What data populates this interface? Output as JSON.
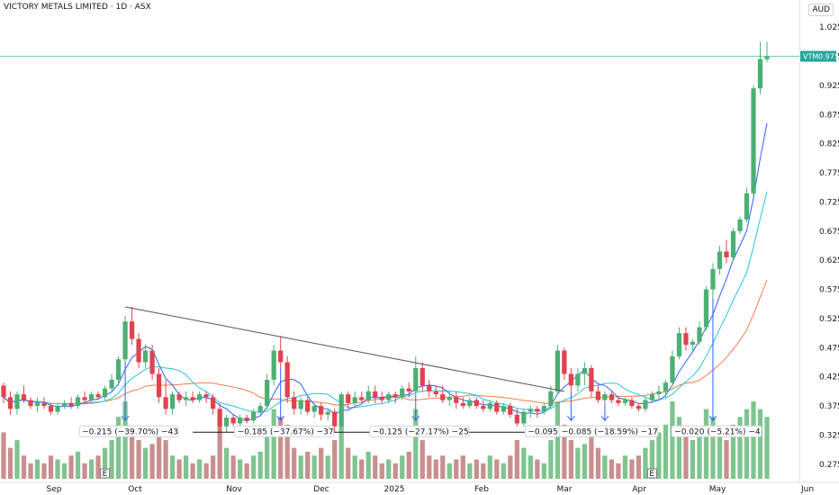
{
  "header": {
    "title": "VICTORY METALS LIMITED · 1D · ASX",
    "currency": "AUD"
  },
  "last_price": {
    "ticker": "VTM",
    "value": "0.975"
  },
  "colors": {
    "up": "#4caf73",
    "down": "#e0434e",
    "ma_fast": "#2962ff",
    "ma_mid": "#26c6da",
    "ma_slow": "#f57c4c",
    "vol_up": "#7fc48f",
    "vol_down": "#c98f8f",
    "trendline": "#555555",
    "price_line": "#26a69a",
    "arrow": "#2962ff"
  },
  "chart_data": {
    "type": "candlestick",
    "y_range": [
      0.25,
      1.05
    ],
    "y_ticks": [
      "1.025",
      "0.975",
      "0.925",
      "0.875",
      "0.825",
      "0.775",
      "0.725",
      "0.675",
      "0.625",
      "0.575",
      "0.525",
      "0.475",
      "0.425",
      "0.375",
      "0.325",
      "0.275"
    ],
    "x_labels": [
      "Sep",
      "Oct",
      "Nov",
      "Dec",
      "2025",
      "Feb",
      "Mar",
      "Apr",
      "May",
      "Jun"
    ],
    "ohlc": [
      [
        0.41,
        0.415,
        0.38,
        0.39
      ],
      [
        0.39,
        0.4,
        0.36,
        0.37
      ],
      [
        0.37,
        0.4,
        0.36,
        0.395
      ],
      [
        0.395,
        0.41,
        0.38,
        0.385
      ],
      [
        0.385,
        0.39,
        0.37,
        0.375
      ],
      [
        0.375,
        0.39,
        0.365,
        0.38
      ],
      [
        0.38,
        0.39,
        0.37,
        0.375
      ],
      [
        0.375,
        0.38,
        0.36,
        0.365
      ],
      [
        0.365,
        0.38,
        0.36,
        0.375
      ],
      [
        0.375,
        0.385,
        0.37,
        0.38
      ],
      [
        0.38,
        0.39,
        0.37,
        0.375
      ],
      [
        0.375,
        0.395,
        0.37,
        0.39
      ],
      [
        0.39,
        0.4,
        0.38,
        0.385
      ],
      [
        0.385,
        0.4,
        0.38,
        0.395
      ],
      [
        0.395,
        0.4,
        0.385,
        0.39
      ],
      [
        0.39,
        0.41,
        0.385,
        0.405
      ],
      [
        0.405,
        0.43,
        0.4,
        0.42
      ],
      [
        0.42,
        0.46,
        0.41,
        0.455
      ],
      [
        0.455,
        0.53,
        0.45,
        0.52
      ],
      [
        0.52,
        0.545,
        0.48,
        0.49
      ],
      [
        0.49,
        0.5,
        0.44,
        0.45
      ],
      [
        0.45,
        0.48,
        0.44,
        0.47
      ],
      [
        0.47,
        0.48,
        0.42,
        0.43
      ],
      [
        0.43,
        0.44,
        0.38,
        0.39
      ],
      [
        0.39,
        0.42,
        0.36,
        0.37
      ],
      [
        0.37,
        0.4,
        0.36,
        0.395
      ],
      [
        0.395,
        0.4,
        0.38,
        0.385
      ],
      [
        0.385,
        0.4,
        0.375,
        0.39
      ],
      [
        0.39,
        0.4,
        0.38,
        0.385
      ],
      [
        0.385,
        0.4,
        0.38,
        0.395
      ],
      [
        0.395,
        0.4,
        0.38,
        0.39
      ],
      [
        0.39,
        0.395,
        0.36,
        0.37
      ],
      [
        0.37,
        0.38,
        0.33,
        0.34
      ],
      [
        0.34,
        0.36,
        0.33,
        0.355
      ],
      [
        0.355,
        0.36,
        0.34,
        0.345
      ],
      [
        0.345,
        0.36,
        0.335,
        0.355
      ],
      [
        0.355,
        0.36,
        0.345,
        0.35
      ],
      [
        0.35,
        0.37,
        0.345,
        0.365
      ],
      [
        0.365,
        0.38,
        0.36,
        0.375
      ],
      [
        0.375,
        0.43,
        0.37,
        0.42
      ],
      [
        0.42,
        0.48,
        0.41,
        0.47
      ],
      [
        0.47,
        0.495,
        0.44,
        0.45
      ],
      [
        0.45,
        0.46,
        0.38,
        0.39
      ],
      [
        0.39,
        0.4,
        0.36,
        0.37
      ],
      [
        0.37,
        0.39,
        0.36,
        0.385
      ],
      [
        0.385,
        0.39,
        0.36,
        0.365
      ],
      [
        0.365,
        0.38,
        0.355,
        0.375
      ],
      [
        0.375,
        0.38,
        0.35,
        0.36
      ],
      [
        0.36,
        0.37,
        0.35,
        0.365
      ],
      [
        0.365,
        0.37,
        0.33,
        0.34
      ],
      [
        0.34,
        0.4,
        0.335,
        0.395
      ],
      [
        0.395,
        0.4,
        0.37,
        0.38
      ],
      [
        0.38,
        0.4,
        0.375,
        0.39
      ],
      [
        0.39,
        0.4,
        0.38,
        0.385
      ],
      [
        0.385,
        0.41,
        0.38,
        0.4
      ],
      [
        0.4,
        0.41,
        0.38,
        0.39
      ],
      [
        0.39,
        0.4,
        0.38,
        0.385
      ],
      [
        0.385,
        0.4,
        0.38,
        0.395
      ],
      [
        0.395,
        0.4,
        0.38,
        0.39
      ],
      [
        0.39,
        0.41,
        0.385,
        0.405
      ],
      [
        0.405,
        0.415,
        0.39,
        0.4
      ],
      [
        0.4,
        0.46,
        0.395,
        0.44
      ],
      [
        0.44,
        0.45,
        0.4,
        0.41
      ],
      [
        0.41,
        0.42,
        0.39,
        0.4
      ],
      [
        0.4,
        0.41,
        0.39,
        0.395
      ],
      [
        0.395,
        0.41,
        0.38,
        0.385
      ],
      [
        0.385,
        0.4,
        0.375,
        0.39
      ],
      [
        0.39,
        0.4,
        0.37,
        0.38
      ],
      [
        0.38,
        0.39,
        0.37,
        0.375
      ],
      [
        0.375,
        0.39,
        0.37,
        0.385
      ],
      [
        0.385,
        0.39,
        0.37,
        0.375
      ],
      [
        0.375,
        0.385,
        0.365,
        0.37
      ],
      [
        0.37,
        0.385,
        0.365,
        0.38
      ],
      [
        0.38,
        0.385,
        0.36,
        0.365
      ],
      [
        0.365,
        0.38,
        0.36,
        0.375
      ],
      [
        0.375,
        0.38,
        0.355,
        0.36
      ],
      [
        0.36,
        0.37,
        0.34,
        0.345
      ],
      [
        0.345,
        0.37,
        0.34,
        0.365
      ],
      [
        0.365,
        0.375,
        0.355,
        0.37
      ],
      [
        0.37,
        0.375,
        0.355,
        0.365
      ],
      [
        0.365,
        0.38,
        0.36,
        0.375
      ],
      [
        0.375,
        0.41,
        0.37,
        0.4
      ],
      [
        0.4,
        0.48,
        0.395,
        0.47
      ],
      [
        0.47,
        0.475,
        0.42,
        0.43
      ],
      [
        0.43,
        0.44,
        0.4,
        0.41
      ],
      [
        0.41,
        0.44,
        0.4,
        0.43
      ],
      [
        0.43,
        0.45,
        0.41,
        0.44
      ],
      [
        0.44,
        0.445,
        0.39,
        0.4
      ],
      [
        0.4,
        0.41,
        0.38,
        0.385
      ],
      [
        0.385,
        0.4,
        0.38,
        0.395
      ],
      [
        0.395,
        0.4,
        0.38,
        0.385
      ],
      [
        0.385,
        0.39,
        0.375,
        0.38
      ],
      [
        0.38,
        0.39,
        0.375,
        0.385
      ],
      [
        0.385,
        0.39,
        0.37,
        0.375
      ],
      [
        0.375,
        0.38,
        0.365,
        0.37
      ],
      [
        0.37,
        0.39,
        0.365,
        0.385
      ],
      [
        0.385,
        0.4,
        0.38,
        0.395
      ],
      [
        0.395,
        0.41,
        0.385,
        0.4
      ],
      [
        0.4,
        0.42,
        0.39,
        0.415
      ],
      [
        0.415,
        0.47,
        0.41,
        0.46
      ],
      [
        0.46,
        0.51,
        0.455,
        0.5
      ],
      [
        0.5,
        0.51,
        0.47,
        0.48
      ],
      [
        0.48,
        0.49,
        0.47,
        0.485
      ],
      [
        0.485,
        0.52,
        0.48,
        0.51
      ],
      [
        0.51,
        0.58,
        0.505,
        0.575
      ],
      [
        0.575,
        0.62,
        0.56,
        0.61
      ],
      [
        0.61,
        0.65,
        0.6,
        0.64
      ],
      [
        0.64,
        0.66,
        0.62,
        0.63
      ],
      [
        0.63,
        0.68,
        0.625,
        0.675
      ],
      [
        0.675,
        0.7,
        0.67,
        0.695
      ],
      [
        0.695,
        0.75,
        0.69,
        0.74
      ],
      [
        0.74,
        0.925,
        0.735,
        0.92
      ],
      [
        0.92,
        1.0,
        0.91,
        0.97
      ],
      [
        0.97,
        1.0,
        0.965,
        0.975
      ]
    ],
    "volume": [
      0.6,
      0.4,
      0.5,
      0.3,
      0.2,
      0.25,
      0.2,
      0.3,
      0.25,
      0.2,
      0.3,
      0.35,
      0.2,
      0.25,
      0.3,
      0.4,
      0.5,
      0.8,
      1.0,
      0.6,
      0.5,
      0.4,
      0.45,
      0.6,
      0.5,
      0.3,
      0.25,
      0.3,
      0.2,
      0.25,
      0.2,
      0.3,
      0.7,
      0.4,
      0.3,
      0.25,
      0.2,
      0.3,
      0.35,
      0.6,
      0.9,
      0.8,
      0.7,
      0.4,
      0.3,
      0.35,
      0.3,
      0.4,
      0.3,
      0.5,
      0.7,
      0.4,
      0.3,
      0.25,
      0.35,
      0.3,
      0.2,
      0.25,
      0.2,
      0.3,
      0.35,
      0.9,
      0.5,
      0.3,
      0.25,
      0.3,
      0.2,
      0.25,
      0.3,
      0.2,
      0.25,
      0.2,
      0.3,
      0.25,
      0.2,
      0.3,
      0.5,
      0.4,
      0.3,
      0.25,
      0.2,
      0.5,
      1.0,
      0.7,
      0.5,
      0.4,
      0.45,
      0.6,
      0.4,
      0.3,
      0.25,
      0.2,
      0.3,
      0.25,
      0.3,
      0.4,
      0.5,
      0.6,
      0.7,
      1.0,
      0.8,
      0.6,
      0.5,
      0.6,
      0.9,
      0.8,
      0.6,
      0.5,
      0.7,
      0.8,
      0.9,
      1.0,
      0.9,
      0.8
    ],
    "annotations": [
      "−0.215 (−39.70%) −43",
      "−0.185 (−37.67%) −37",
      "−0.125 (−27.17%) −25",
      "−0.095 (−19.96%) −19",
      "−0.085 (−18.59%) −17",
      "−0.020 (−5.21%) −4"
    ],
    "earnings_markers": [
      "E",
      "E"
    ]
  }
}
